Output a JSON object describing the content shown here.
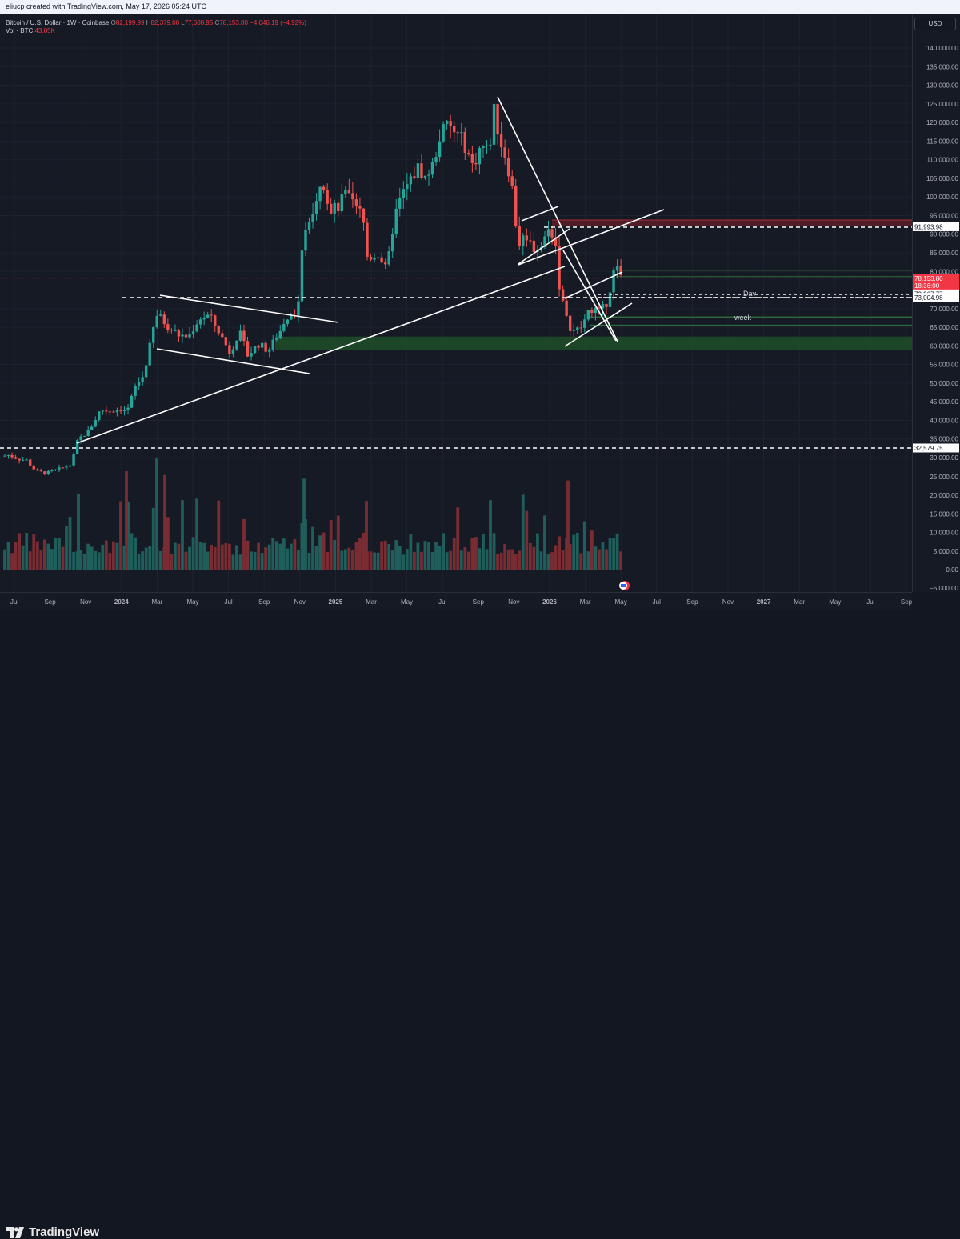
{
  "header": {
    "attribution": "eliucp created with TradingView.com, May 17, 2026 05:24 UTC"
  },
  "legend": {
    "symbol": "Bitcoin / U.S. Dollar · 1W · Coinbase",
    "o_label": "O",
    "o_value": "82,199.99",
    "h_label": "H",
    "h_value": "82,379.00",
    "l_label": "L",
    "l_value": "77,608.95",
    "c_label": "C",
    "c_value": "78,153.80",
    "change": "−4,046.19 (−4.92%)",
    "vol_label": "Vol · BTC",
    "vol_value": "43.85K"
  },
  "currency_button": "USD",
  "price_axis": {
    "ticks": [
      "140,000.00",
      "135,000.00",
      "130,000.00",
      "125,000.00",
      "120,000.00",
      "115,000.00",
      "110,000.00",
      "105,000.00",
      "100,000.00",
      "95,000.00",
      "90,000.00",
      "85,000.00",
      "80,000.00",
      "70,000.00",
      "65,000.00",
      "60,000.00",
      "55,000.00",
      "50,000.00",
      "45,000.00",
      "40,000.00",
      "35,000.00",
      "30,000.00"
    ],
    "tick_values": [
      140000,
      135000,
      130000,
      125000,
      120000,
      115000,
      110000,
      105000,
      100000,
      95000,
      90000,
      85000,
      80000,
      70000,
      65000,
      60000,
      55000,
      50000,
      45000,
      40000,
      35000,
      30000
    ],
    "price_labels": [
      {
        "text": "91,993.98",
        "value": 91993.98,
        "style": "white"
      },
      {
        "text": "78,153.80",
        "value": 78153.8,
        "style": "red"
      },
      {
        "text": "18:36:00",
        "value": 76200,
        "style": "red"
      },
      {
        "text": "73,967.77",
        "value": 73967.77,
        "style": "white"
      },
      {
        "text": "73,004.98",
        "value": 73004.98,
        "style": "white"
      },
      {
        "text": "32,579.75",
        "value": 32579.75,
        "style": "white"
      }
    ]
  },
  "volume_axis": {
    "ticks": [
      "25,000.00",
      "20,000.00",
      "15,000.00",
      "10,000.00",
      "5,000.00",
      "0.00",
      "−5,000.00"
    ],
    "tick_values": [
      25000,
      20000,
      15000,
      10000,
      5000,
      0,
      -5000
    ]
  },
  "time_axis": {
    "labels": [
      "Jul",
      "Sep",
      "Nov",
      "2024",
      "Mar",
      "May",
      "Jul",
      "Sep",
      "Nov",
      "2025",
      "Mar",
      "May",
      "Jul",
      "Sep",
      "Nov",
      "2026",
      "Mar",
      "May",
      "Jul",
      "Sep",
      "Nov",
      "2027",
      "Mar",
      "May",
      "Jul",
      "Sep"
    ],
    "bold": [
      false,
      false,
      false,
      true,
      false,
      false,
      false,
      false,
      false,
      true,
      false,
      false,
      false,
      false,
      false,
      true,
      false,
      false,
      false,
      false,
      false,
      true,
      false,
      false,
      false,
      false
    ]
  },
  "annotations": {
    "day_label": "Day",
    "week_label": "week"
  },
  "footer": {
    "brand": "TradingView"
  },
  "colors": {
    "up": "#26a69a",
    "down": "#ef5350",
    "background": "#161a25",
    "zone_green": "#1f4f2b",
    "zone_red": "#5a1f28"
  },
  "chart_data": {
    "type": "candlestick",
    "symbol": "Bitcoin / U.S. Dollar",
    "interval": "1W",
    "exchange": "Coinbase",
    "ohlc_last": {
      "open": 82199.99,
      "high": 82379.0,
      "low": 77608.95,
      "close": 78153.8
    },
    "price_range": [
      -5000,
      145000
    ],
    "close_path": [
      {
        "date": "2023-06",
        "close": 30500
      },
      {
        "date": "2023-08",
        "close": 26000
      },
      {
        "date": "2023-10",
        "close": 34500
      },
      {
        "date": "2023-12",
        "close": 42000
      },
      {
        "date": "2024-02",
        "close": 51000
      },
      {
        "date": "2024-03",
        "close": 69000
      },
      {
        "date": "2024-05",
        "close": 67000
      },
      {
        "date": "2024-07",
        "close": 60000
      },
      {
        "date": "2024-09",
        "close": 64000
      },
      {
        "date": "2024-11",
        "close": 97000
      },
      {
        "date": "2025-01",
        "close": 104000
      },
      {
        "date": "2025-03",
        "close": 84000
      },
      {
        "date": "2025-05",
        "close": 104000
      },
      {
        "date": "2025-07",
        "close": 118000
      },
      {
        "date": "2025-09",
        "close": 112000
      },
      {
        "date": "2025-10",
        "close": 122000
      },
      {
        "date": "2025-11",
        "close": 87000
      },
      {
        "date": "2026-01",
        "close": 88000
      },
      {
        "date": "2026-02",
        "close": 64000
      },
      {
        "date": "2026-04",
        "close": 75000
      },
      {
        "date": "2026-05",
        "close": 78153.8
      }
    ],
    "horizontal_levels": [
      91993.98,
      73967.77,
      73004.98,
      32579.75
    ],
    "zones": [
      {
        "type": "support",
        "from": 59000,
        "to": 62500
      },
      {
        "type": "resistance",
        "from": 92500,
        "to": 93500
      }
    ]
  }
}
